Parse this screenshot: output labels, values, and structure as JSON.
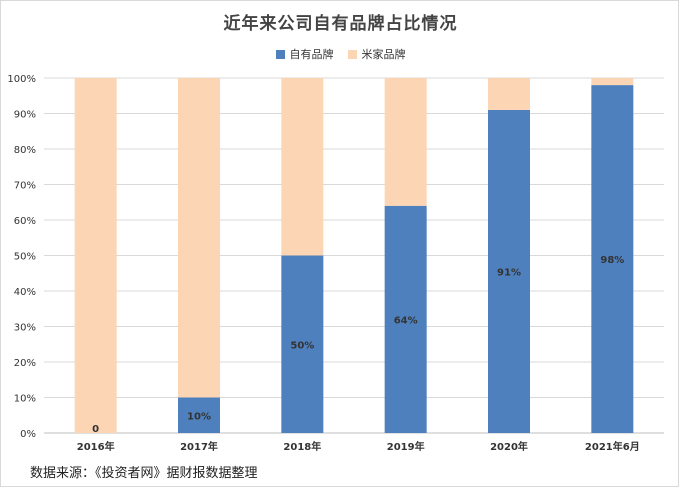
{
  "chart_data": {
    "type": "bar",
    "stacked": true,
    "title": "近年来公司自有品牌占比情况",
    "categories": [
      "2016年",
      "2017年",
      "2018年",
      "2019年",
      "2020年",
      "2021年6月"
    ],
    "series": [
      {
        "name": "自有品牌",
        "values": [
          0,
          10,
          50,
          64,
          91,
          98
        ],
        "color": "#4e80bd"
      },
      {
        "name": "米家品牌",
        "values": [
          100,
          90,
          50,
          36,
          9,
          2
        ],
        "color": "#fcd5b4"
      }
    ],
    "data_labels": [
      "0",
      "10%",
      "50%",
      "64%",
      "91%",
      "98%"
    ],
    "yticks": [
      "0%",
      "10%",
      "20%",
      "30%",
      "40%",
      "50%",
      "60%",
      "70%",
      "80%",
      "90%",
      "100%"
    ],
    "ylim": [
      0,
      100
    ],
    "grid": true,
    "legend_position": "top"
  },
  "source_note": "数据来源：《投资者网》据财报数据整理"
}
